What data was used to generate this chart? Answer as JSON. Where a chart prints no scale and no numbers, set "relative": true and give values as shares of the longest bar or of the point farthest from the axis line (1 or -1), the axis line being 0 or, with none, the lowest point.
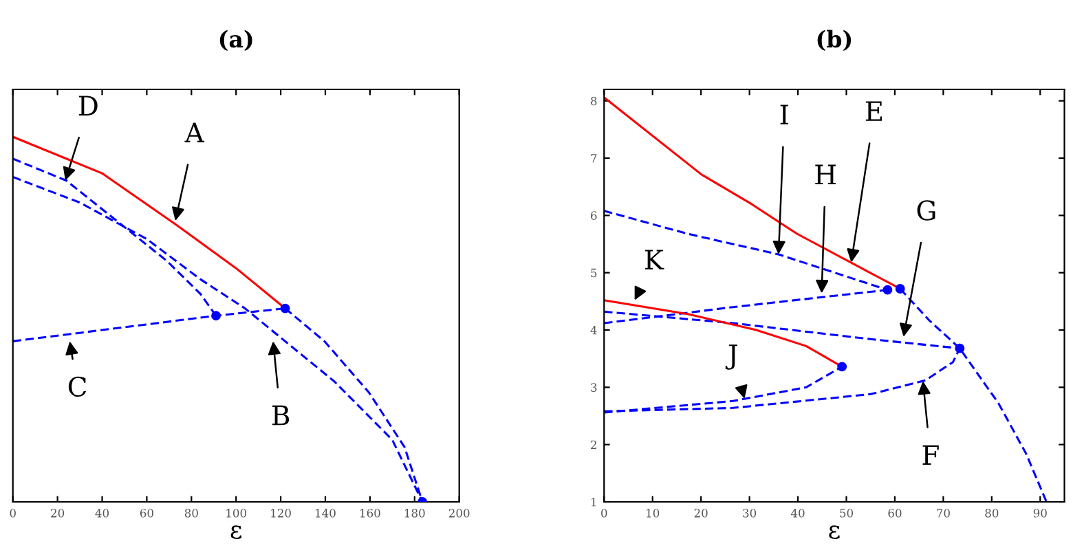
{
  "chart_data": [
    {
      "type": "line",
      "title": "(a)",
      "xlabel": "ε",
      "relative": true,
      "xlim": [
        0,
        200
      ],
      "xticks": [
        0,
        20,
        40,
        60,
        80,
        100,
        120,
        140,
        160,
        180,
        200
      ],
      "tick_labels": "x",
      "grid": false,
      "legend": false,
      "series": [
        {
          "color": "#ff0000",
          "line_style": "solid",
          "x": [
            0,
            40,
            73,
            100,
            122
          ],
          "values": [
            1,
            0.9,
            0.76,
            0.64,
            0.53
          ]
        },
        {
          "color": "#0000ff",
          "line_style": "dashed",
          "x": [
            0,
            24,
            69,
            84,
            91
          ],
          "values": [
            0.94,
            0.88,
            0.66,
            0.57,
            0.51
          ]
        },
        {
          "color": "#0000ff",
          "line_style": "dashed",
          "x": [
            0,
            30,
            60,
            84,
            104,
            120,
            144,
            170,
            183.5
          ],
          "values": [
            0.89,
            0.82,
            0.72,
            0.61,
            0.53,
            0.45,
            0.33,
            0.17,
            0
          ]
        },
        {
          "color": "#0000ff",
          "line_style": "dashed",
          "x": [
            122,
            139.6,
            159.5,
            175.5,
            183.5
          ],
          "values": [
            0.53,
            0.44,
            0.3,
            0.15,
            0
          ]
        },
        {
          "color": "#0000ff",
          "line_style": "dashed",
          "x": [
            0,
            91,
            122
          ],
          "values": [
            0.44,
            0.51,
            0.53
          ]
        },
        {
          "type": "scatter",
          "color": "#0000ff",
          "marker": "circle",
          "x": [
            91,
            122,
            183.5
          ],
          "values": [
            0.51,
            0.53,
            0
          ]
        }
      ],
      "annotations": [
        {
          "text": "A",
          "x": 72.8,
          "y": 0.77
        },
        {
          "text": "D",
          "x": 23.5,
          "y": 0.88
        },
        {
          "text": "C",
          "x": 25.5,
          "y": 0.44
        },
        {
          "text": "B",
          "x": 116.6,
          "y": 0.44
        }
      ]
    },
    {
      "type": "line",
      "title": "(b)",
      "xlabel": "ε",
      "xlim": [
        0,
        95
      ],
      "xticks": [
        0,
        10,
        20,
        30,
        40,
        50,
        60,
        70,
        80,
        90
      ],
      "ylim": [
        1,
        8.2
      ],
      "yticks": [
        1,
        2,
        3,
        4,
        5,
        6,
        7,
        8
      ],
      "grid": false,
      "legend": false,
      "series": [
        {
          "color": "#ff0000",
          "line_style": "solid",
          "x": [
            0,
            20,
            30.4,
            39.8,
            61.1
          ],
          "values": [
            8.06,
            6.72,
            6.2,
            5.68,
            4.72
          ]
        },
        {
          "color": "#0000ff",
          "line_style": "dashed",
          "x": [
            0,
            17.2,
            36,
            58.5,
            61.1
          ],
          "values": [
            6.08,
            5.68,
            5.32,
            4.7,
            4.72
          ]
        },
        {
          "color": "#0000ff",
          "line_style": "dashed",
          "x": [
            0,
            26.6,
            58.5
          ],
          "values": [
            4.12,
            4.4,
            4.7
          ]
        },
        {
          "color": "#0000ff",
          "line_style": "dashed",
          "x": [
            0,
            26.6,
            55,
            73.4
          ],
          "values": [
            4.32,
            4.12,
            3.84,
            3.68
          ]
        },
        {
          "color": "#0000ff",
          "line_style": "dashed",
          "x": [
            61.1,
            67.2,
            73.4,
            81.4,
            87.1,
            91.3
          ],
          "values": [
            4.72,
            4.16,
            3.68,
            2.72,
            1.84,
            1
          ]
        },
        {
          "color": "#0000ff",
          "line_style": "dashed",
          "x": [
            0,
            26.6,
            55,
            66.3,
            72,
            73.4
          ],
          "values": [
            2.58,
            2.64,
            2.88,
            3.12,
            3.44,
            3.68
          ]
        },
        {
          "color": "#ff0000",
          "line_style": "solid",
          "x": [
            0,
            17.2,
            31.4,
            41.7,
            49.1
          ],
          "values": [
            4.52,
            4.28,
            4.0,
            3.72,
            3.36
          ]
        },
        {
          "color": "#0000ff",
          "line_style": "dashed",
          "x": [
            0,
            26.6,
            41.7,
            49.1
          ],
          "values": [
            2.56,
            2.76,
            3.0,
            3.36
          ]
        },
        {
          "type": "scatter",
          "color": "#0000ff",
          "marker": "circle",
          "x": [
            58.5,
            61.1,
            73.4,
            49.1
          ],
          "values": [
            4.7,
            4.72,
            3.68,
            3.36
          ]
        }
      ],
      "annotations": [
        {
          "text": "I",
          "x": 36,
          "y": 5.32
        },
        {
          "text": "E",
          "x": 51,
          "y": 5.18
        },
        {
          "text": "H",
          "x": 44.9,
          "y": 4.64
        },
        {
          "text": "G",
          "x": 61.8,
          "y": 3.88
        },
        {
          "text": "K",
          "x": 6.3,
          "y": 4.52
        },
        {
          "text": "J",
          "x": 29,
          "y": 2.8
        },
        {
          "text": "F",
          "x": 65.8,
          "y": 3.11
        }
      ]
    }
  ]
}
